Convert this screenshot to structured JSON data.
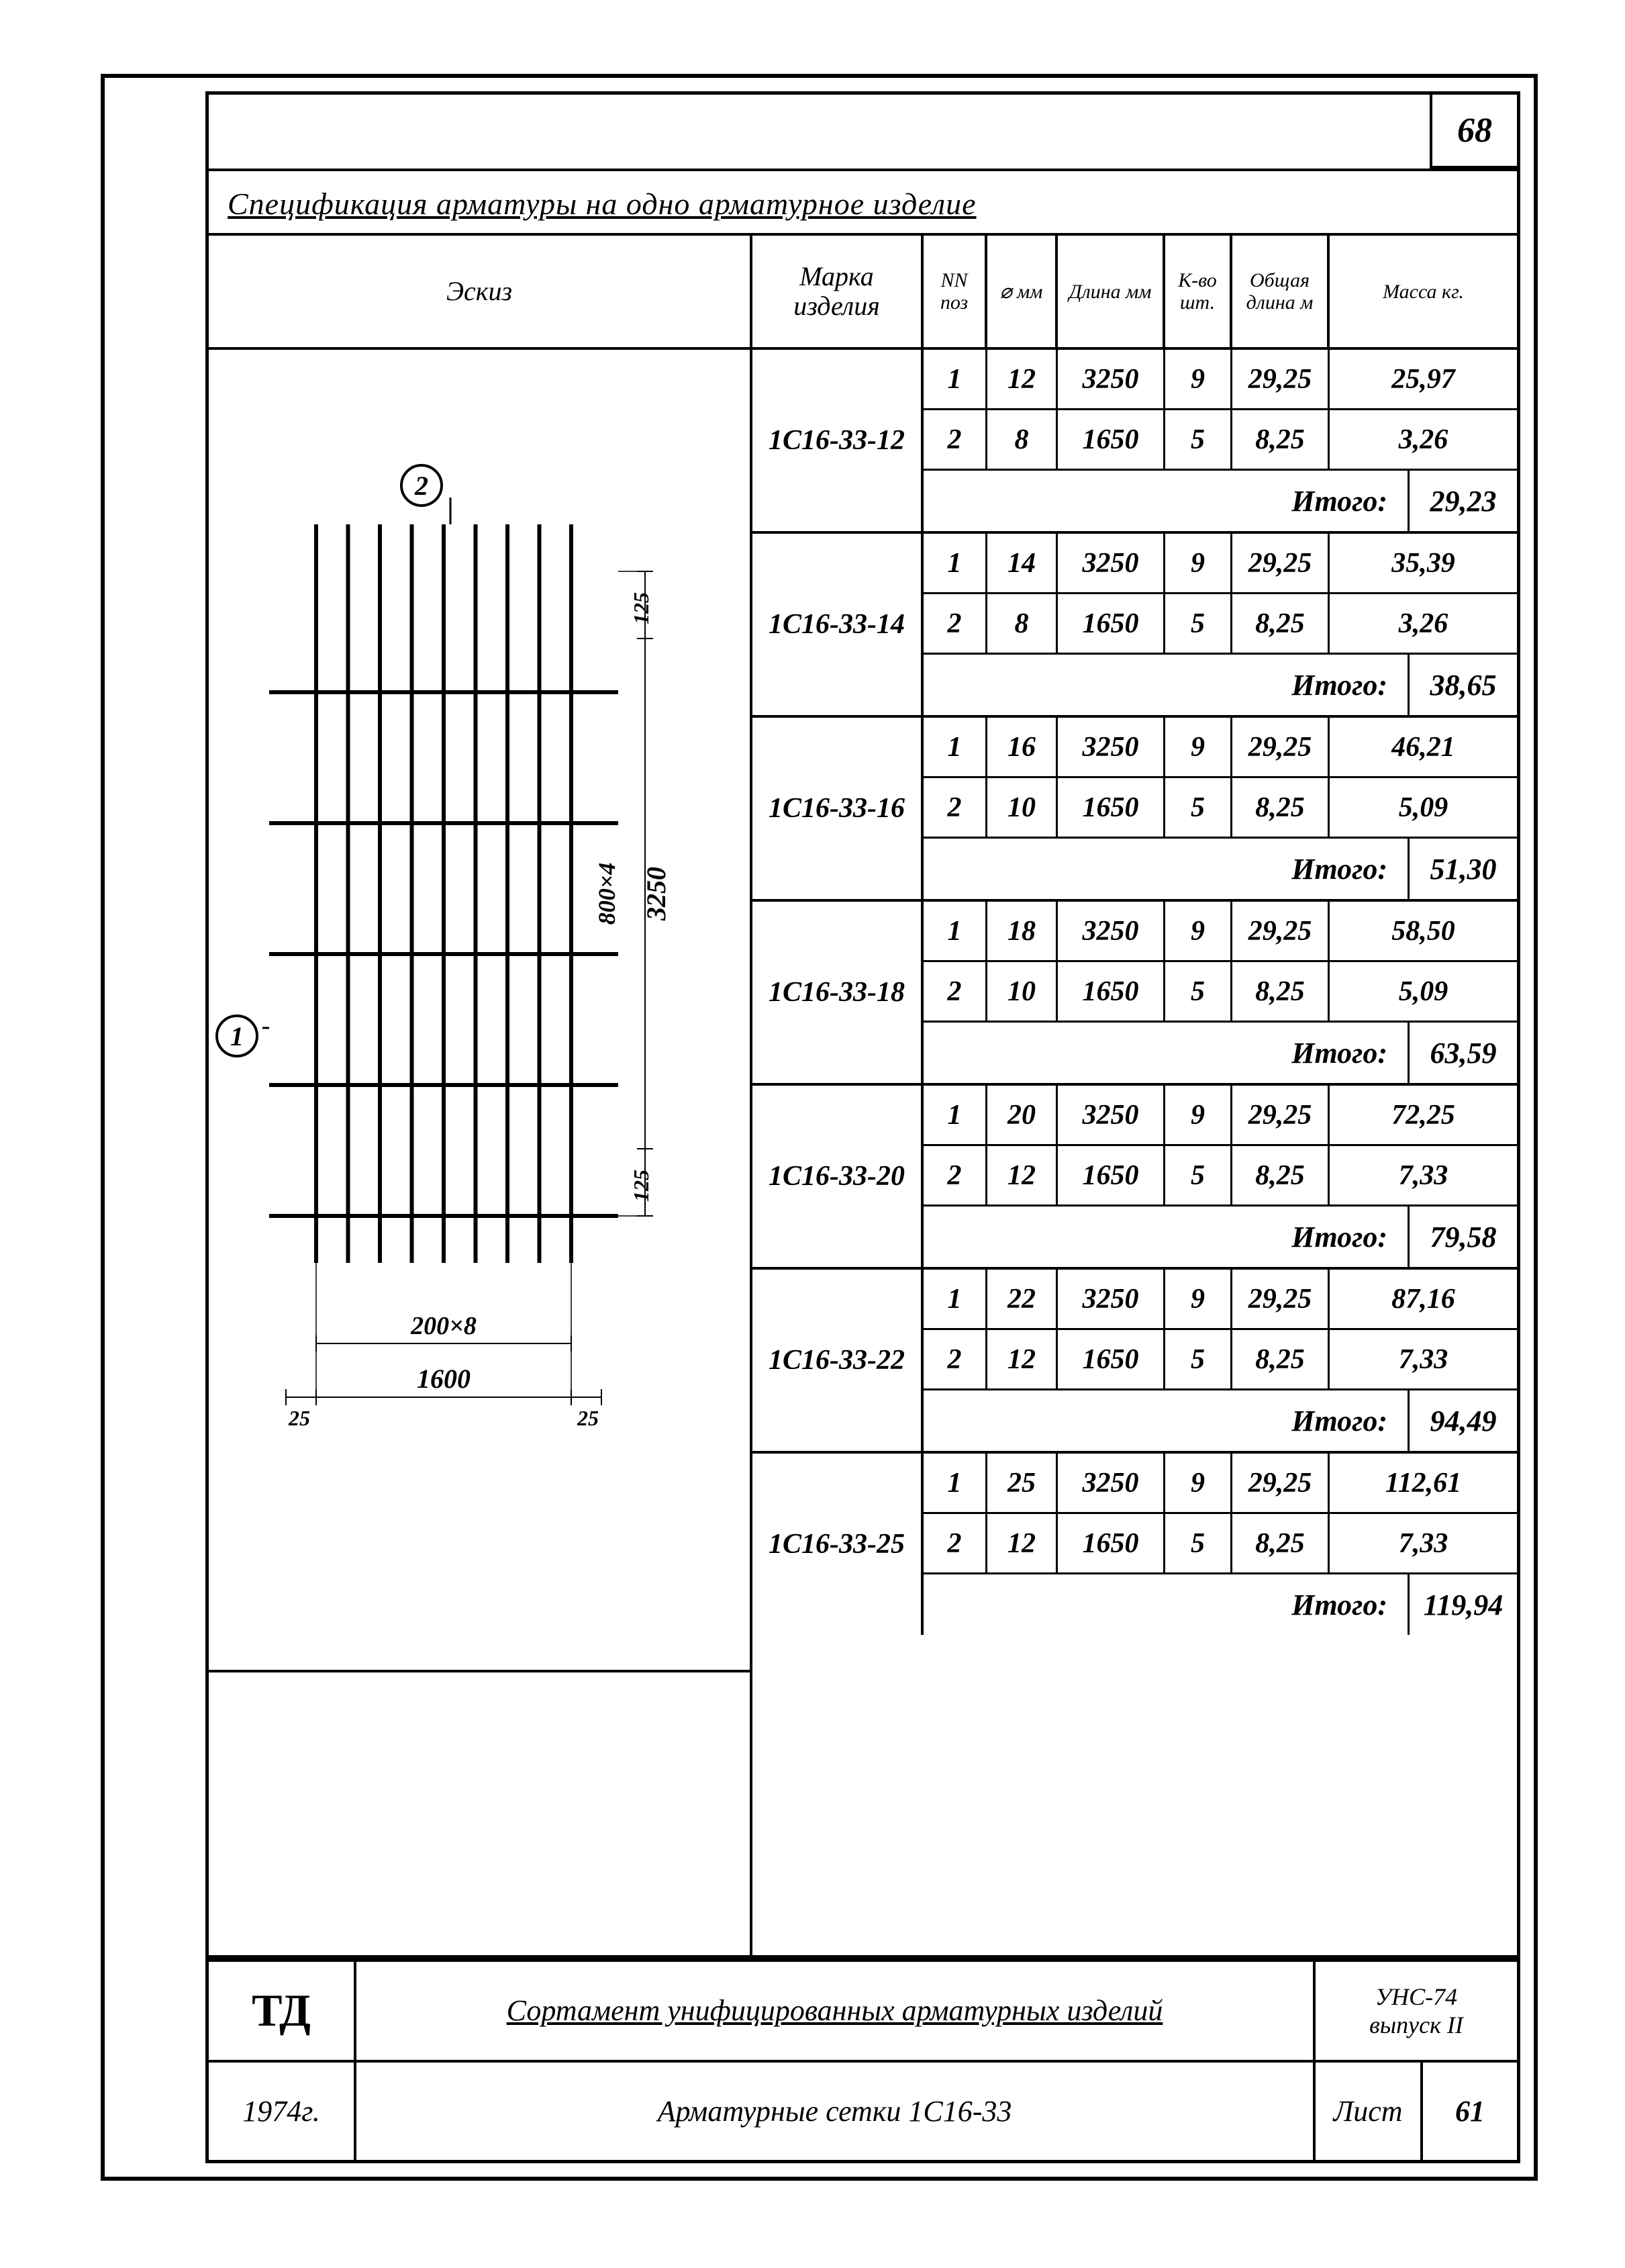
{
  "page_number_top": "68",
  "title": "Спецификация арматуры на одно арматурное изделие",
  "headers": {
    "sketch": "Эскиз",
    "mark": "Марка изделия",
    "nn": "NN поз",
    "diam": "⌀ мм",
    "len": "Длина мм",
    "qty": "К-во шт.",
    "total_len": "Общая длина м",
    "mass": "Масса кг."
  },
  "itogo_label": "Итого:",
  "groups": [
    {
      "mark": "1С16-33-12",
      "rows": [
        {
          "nn": "1",
          "d": "12",
          "len": "3250",
          "qty": "9",
          "tot": "29,25",
          "mass": "25,97"
        },
        {
          "nn": "2",
          "d": "8",
          "len": "1650",
          "qty": "5",
          "tot": "8,25",
          "mass": "3,26"
        }
      ],
      "subtotal": "29,23"
    },
    {
      "mark": "1С16-33-14",
      "rows": [
        {
          "nn": "1",
          "d": "14",
          "len": "3250",
          "qty": "9",
          "tot": "29,25",
          "mass": "35,39"
        },
        {
          "nn": "2",
          "d": "8",
          "len": "1650",
          "qty": "5",
          "tot": "8,25",
          "mass": "3,26"
        }
      ],
      "subtotal": "38,65"
    },
    {
      "mark": "1С16-33-16",
      "rows": [
        {
          "nn": "1",
          "d": "16",
          "len": "3250",
          "qty": "9",
          "tot": "29,25",
          "mass": "46,21"
        },
        {
          "nn": "2",
          "d": "10",
          "len": "1650",
          "qty": "5",
          "tot": "8,25",
          "mass": "5,09"
        }
      ],
      "subtotal": "51,30"
    },
    {
      "mark": "1С16-33-18",
      "rows": [
        {
          "nn": "1",
          "d": "18",
          "len": "3250",
          "qty": "9",
          "tot": "29,25",
          "mass": "58,50"
        },
        {
          "nn": "2",
          "d": "10",
          "len": "1650",
          "qty": "5",
          "tot": "8,25",
          "mass": "5,09"
        }
      ],
      "subtotal": "63,59"
    },
    {
      "mark": "1С16-33-20",
      "rows": [
        {
          "nn": "1",
          "d": "20",
          "len": "3250",
          "qty": "9",
          "tot": "29,25",
          "mass": "72,25"
        },
        {
          "nn": "2",
          "d": "12",
          "len": "1650",
          "qty": "5",
          "tot": "8,25",
          "mass": "7,33"
        }
      ],
      "subtotal": "79,58"
    },
    {
      "mark": "1С16-33-22",
      "rows": [
        {
          "nn": "1",
          "d": "22",
          "len": "3250",
          "qty": "9",
          "tot": "29,25",
          "mass": "87,16"
        },
        {
          "nn": "2",
          "d": "12",
          "len": "1650",
          "qty": "5",
          "tot": "8,25",
          "mass": "7,33"
        }
      ],
      "subtotal": "94,49"
    },
    {
      "mark": "1С16-33-25",
      "rows": [
        {
          "nn": "1",
          "d": "25",
          "len": "3250",
          "qty": "9",
          "tot": "29,25",
          "mass": "112,61"
        },
        {
          "nn": "2",
          "d": "12",
          "len": "1650",
          "qty": "5",
          "tot": "8,25",
          "mass": "7,33"
        }
      ],
      "subtotal": "119,94"
    }
  ],
  "sketch": {
    "callout1": "1",
    "callout2": "2",
    "dim_v_small_top": "125",
    "dim_v_main": "3250",
    "dim_v_step": "800×4",
    "dim_v_small_bot": "125",
    "dim_h_step": "200×8",
    "dim_h_total": "1600",
    "dim_h_edge_l": "25",
    "dim_h_edge_r": "25",
    "vbars": 9,
    "hbars": 5,
    "grid_color": "#000000",
    "line_width": 5
  },
  "titleblock": {
    "org": "ТД",
    "year": "1974г.",
    "line1": "Сортамент унифицированных арматурных изделий",
    "series": "УНС-74",
    "issue": "выпуск II",
    "line2": "Арматурные сетки   1С16-33",
    "sheet_label": "Лист",
    "sheet_num": "61"
  },
  "colors": {
    "ink": "#000000",
    "paper": "#ffffff"
  }
}
